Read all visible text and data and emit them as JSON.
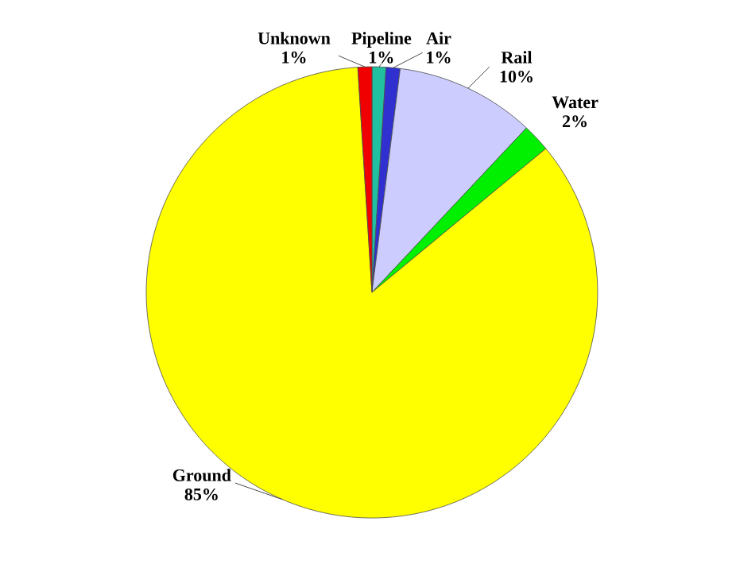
{
  "chart_data": {
    "type": "pie",
    "categories": [
      "Pipeline",
      "Air",
      "Rail",
      "Water",
      "Ground",
      "Unknown"
    ],
    "values": [
      1,
      1,
      10,
      2,
      85,
      1
    ],
    "value_labels": [
      "1%",
      "1%",
      "10%",
      "2%",
      "85%",
      "1%"
    ],
    "colors": [
      "#20c0a0",
      "#3030d0",
      "#ccccff",
      "#00f000",
      "#ffff00",
      "#f00000"
    ]
  }
}
